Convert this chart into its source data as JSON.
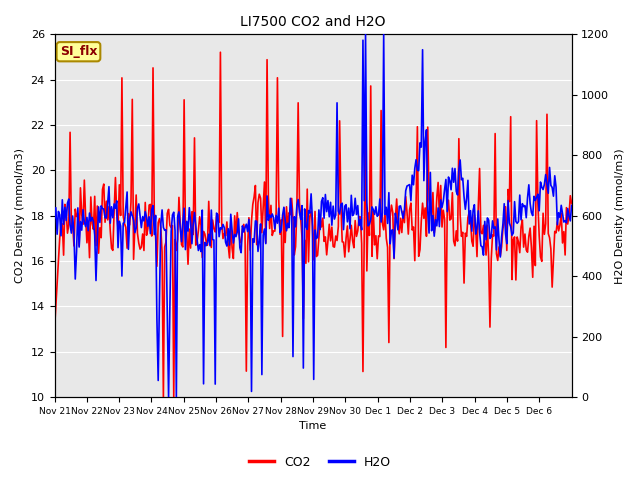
{
  "title": "LI7500 CO2 and H2O",
  "xlabel": "Time",
  "ylabel_left": "CO2 Density (mmol/m3)",
  "ylabel_right": "H2O Density (mmol/m3)",
  "ylim_left": [
    10,
    26
  ],
  "ylim_right": [
    0,
    1200
  ],
  "co2_color": "#ff0000",
  "h2o_color": "#0000ff",
  "plot_bg_color": "#e8e8e8",
  "annotation_text": "SI_flx",
  "annotation_bg": "#ffff99",
  "annotation_border": "#aa8800",
  "legend_co2": "CO2",
  "legend_h2o": "H2O",
  "x_tick_labels": [
    "Nov 21",
    "Nov 22",
    "Nov 23",
    "Nov 24",
    "Nov 25",
    "Nov 26",
    "Nov 27",
    "Nov 28",
    "Nov 29",
    "Nov 30",
    "Dec 1",
    "Dec 2",
    "Dec 3",
    "Dec 4",
    "Dec 5",
    "Dec 6"
  ],
  "linewidth": 1.2,
  "figsize": [
    6.4,
    4.8
  ],
  "dpi": 100
}
